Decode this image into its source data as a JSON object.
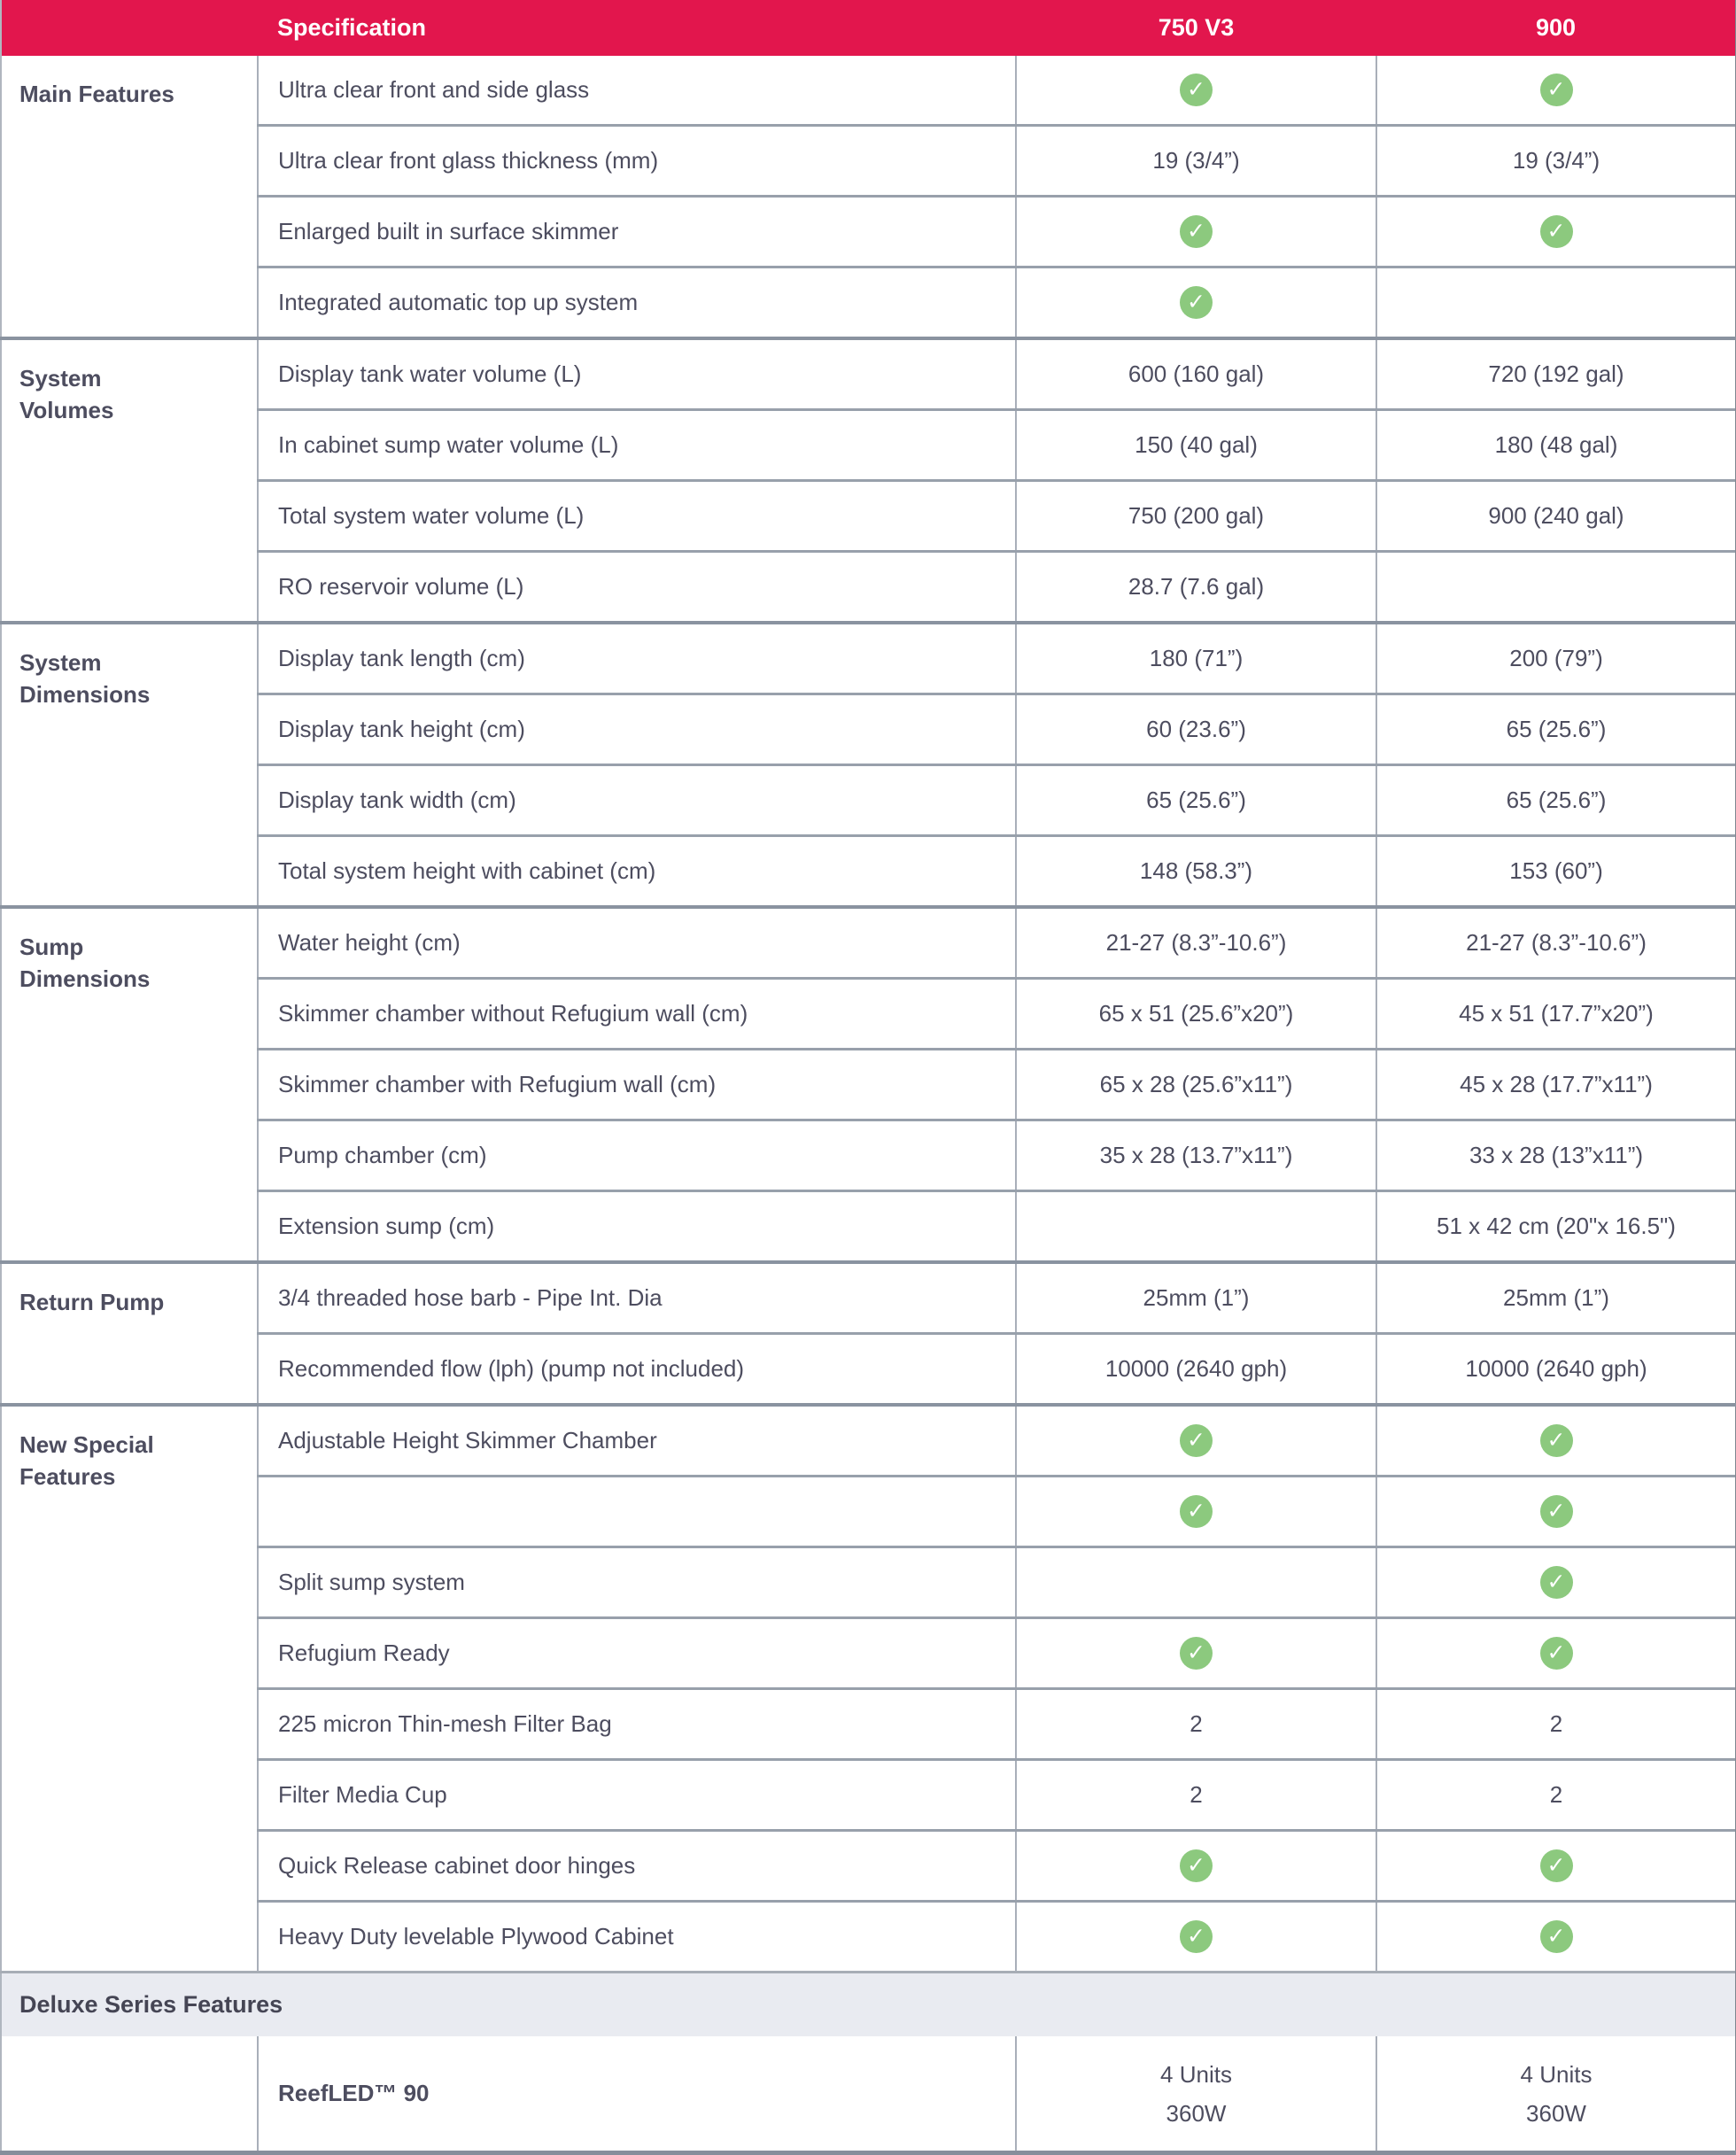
{
  "header": {
    "specification": "Specification",
    "col_750": "750 V3",
    "col_900": "900"
  },
  "colors": {
    "header_bg": "#e2164d",
    "header_text": "#ffffff",
    "body_text": "#4d4d5f",
    "check_green": "#8cc97e",
    "band_bg": "#e9ebf1",
    "row_line": "#98a0ab",
    "group_line": "#8a93a0"
  },
  "icons": {
    "check": "check-icon"
  },
  "groups": [
    {
      "label": "Main Features",
      "rows": [
        {
          "spec": "Ultra clear front and side glass",
          "v750": {
            "check": true
          },
          "v900": {
            "check": true
          }
        },
        {
          "spec": "Ultra clear front glass thickness (mm)",
          "v750": {
            "text": "19 (3/4”)"
          },
          "v900": {
            "text": "19 (3/4”)"
          }
        },
        {
          "spec": "Enlarged built in surface skimmer",
          "v750": {
            "check": true
          },
          "v900": {
            "check": true
          }
        },
        {
          "spec": "Integrated automatic top up system",
          "v750": {
            "check": true
          },
          "v900": {}
        }
      ]
    },
    {
      "label": "System Volumes",
      "rows": [
        {
          "spec": "Display tank water volume (L)",
          "v750": {
            "text": "600 (160 gal)"
          },
          "v900": {
            "text": "720 (192 gal)"
          }
        },
        {
          "spec": "In cabinet sump water volume (L)",
          "v750": {
            "text": "150 (40 gal)"
          },
          "v900": {
            "text": "180 (48 gal)"
          }
        },
        {
          "spec": "Total system water volume (L)",
          "v750": {
            "text": "750 (200 gal)"
          },
          "v900": {
            "text": "900 (240 gal)"
          }
        },
        {
          "spec": "RO reservoir volume (L)",
          "v750": {
            "text": "28.7 (7.6 gal)"
          },
          "v900": {}
        }
      ]
    },
    {
      "label": "System Dimensions",
      "rows": [
        {
          "spec": "Display tank length (cm)",
          "v750": {
            "text": "180 (71”)"
          },
          "v900": {
            "text": "200 (79”)"
          }
        },
        {
          "spec": "Display tank height (cm)",
          "v750": {
            "text": "60 (23.6”)"
          },
          "v900": {
            "text": "65 (25.6”)"
          }
        },
        {
          "spec": "Display tank width (cm)",
          "v750": {
            "text": "65 (25.6”)"
          },
          "v900": {
            "text": "65 (25.6”)"
          }
        },
        {
          "spec": "Total system height with cabinet (cm)",
          "v750": {
            "text": "148 (58.3”)"
          },
          "v900": {
            "text": "153 (60”)"
          }
        }
      ]
    },
    {
      "label": "Sump Dimensions",
      "rows": [
        {
          "spec": "Water height (cm)",
          "v750": {
            "text": "21-27 (8.3”-10.6”)"
          },
          "v900": {
            "text": "21-27 (8.3”-10.6”)"
          }
        },
        {
          "spec": "Skimmer chamber without Refugium wall (cm)",
          "v750": {
            "text": "65 x 51 (25.6”x20”)"
          },
          "v900": {
            "text": "45 x 51 (17.7”x20”)"
          }
        },
        {
          "spec": "Skimmer chamber with Refugium wall (cm)",
          "v750": {
            "text": "65 x 28 (25.6”x11”)"
          },
          "v900": {
            "text": "45 x 28 (17.7”x11”)"
          }
        },
        {
          "spec": "Pump chamber (cm)",
          "v750": {
            "text": "35 x 28 (13.7”x11”)"
          },
          "v900": {
            "text": "33 x 28 (13”x11”)"
          }
        },
        {
          "spec": "Extension sump (cm)",
          "v750": {},
          "v900": {
            "text": "51 x 42 cm (20\"x 16.5\")"
          }
        }
      ]
    },
    {
      "label": "Return Pump",
      "rows": [
        {
          "spec": "3/4 threaded hose barb - Pipe Int. Dia",
          "v750": {
            "text": "25mm (1”)"
          },
          "v900": {
            "text": "25mm (1”)"
          }
        },
        {
          "spec": "Recommended flow (lph) (pump not included)",
          "v750": {
            "text": "10000 (2640 gph)"
          },
          "v900": {
            "text": "10000 (2640 gph)"
          }
        }
      ]
    },
    {
      "label": "New Special Features",
      "rows": [
        {
          "spec": "Adjustable Height Skimmer Chamber",
          "v750": {
            "check": true
          },
          "v900": {
            "check": true
          }
        },
        {
          "spec": "",
          "v750": {
            "check": true
          },
          "v900": {
            "check": true
          }
        },
        {
          "spec": "Split sump system",
          "v750": {},
          "v900": {
            "check": true
          }
        },
        {
          "spec": "Refugium Ready",
          "v750": {
            "check": true
          },
          "v900": {
            "check": true
          }
        },
        {
          "spec": "225 micron Thin-mesh Filter Bag",
          "v750": {
            "text": "2"
          },
          "v900": {
            "text": "2"
          }
        },
        {
          "spec": "Filter Media Cup",
          "v750": {
            "text": "2"
          },
          "v900": {
            "text": "2"
          }
        },
        {
          "spec": "Quick Release cabinet door hinges",
          "v750": {
            "check": true
          },
          "v900": {
            "check": true
          }
        },
        {
          "spec": "Heavy Duty levelable Plywood Cabinet",
          "v750": {
            "check": true
          },
          "v900": {
            "check": true
          }
        }
      ]
    }
  ],
  "deluxe_band": {
    "label": "Deluxe Series Features"
  },
  "deluxe_rows": [
    {
      "spec": "ReefLED™ 90",
      "v750": {
        "lines": [
          "4 Units",
          "360W"
        ]
      },
      "v900": {
        "lines": [
          "4 Units",
          "360W"
        ]
      }
    }
  ]
}
